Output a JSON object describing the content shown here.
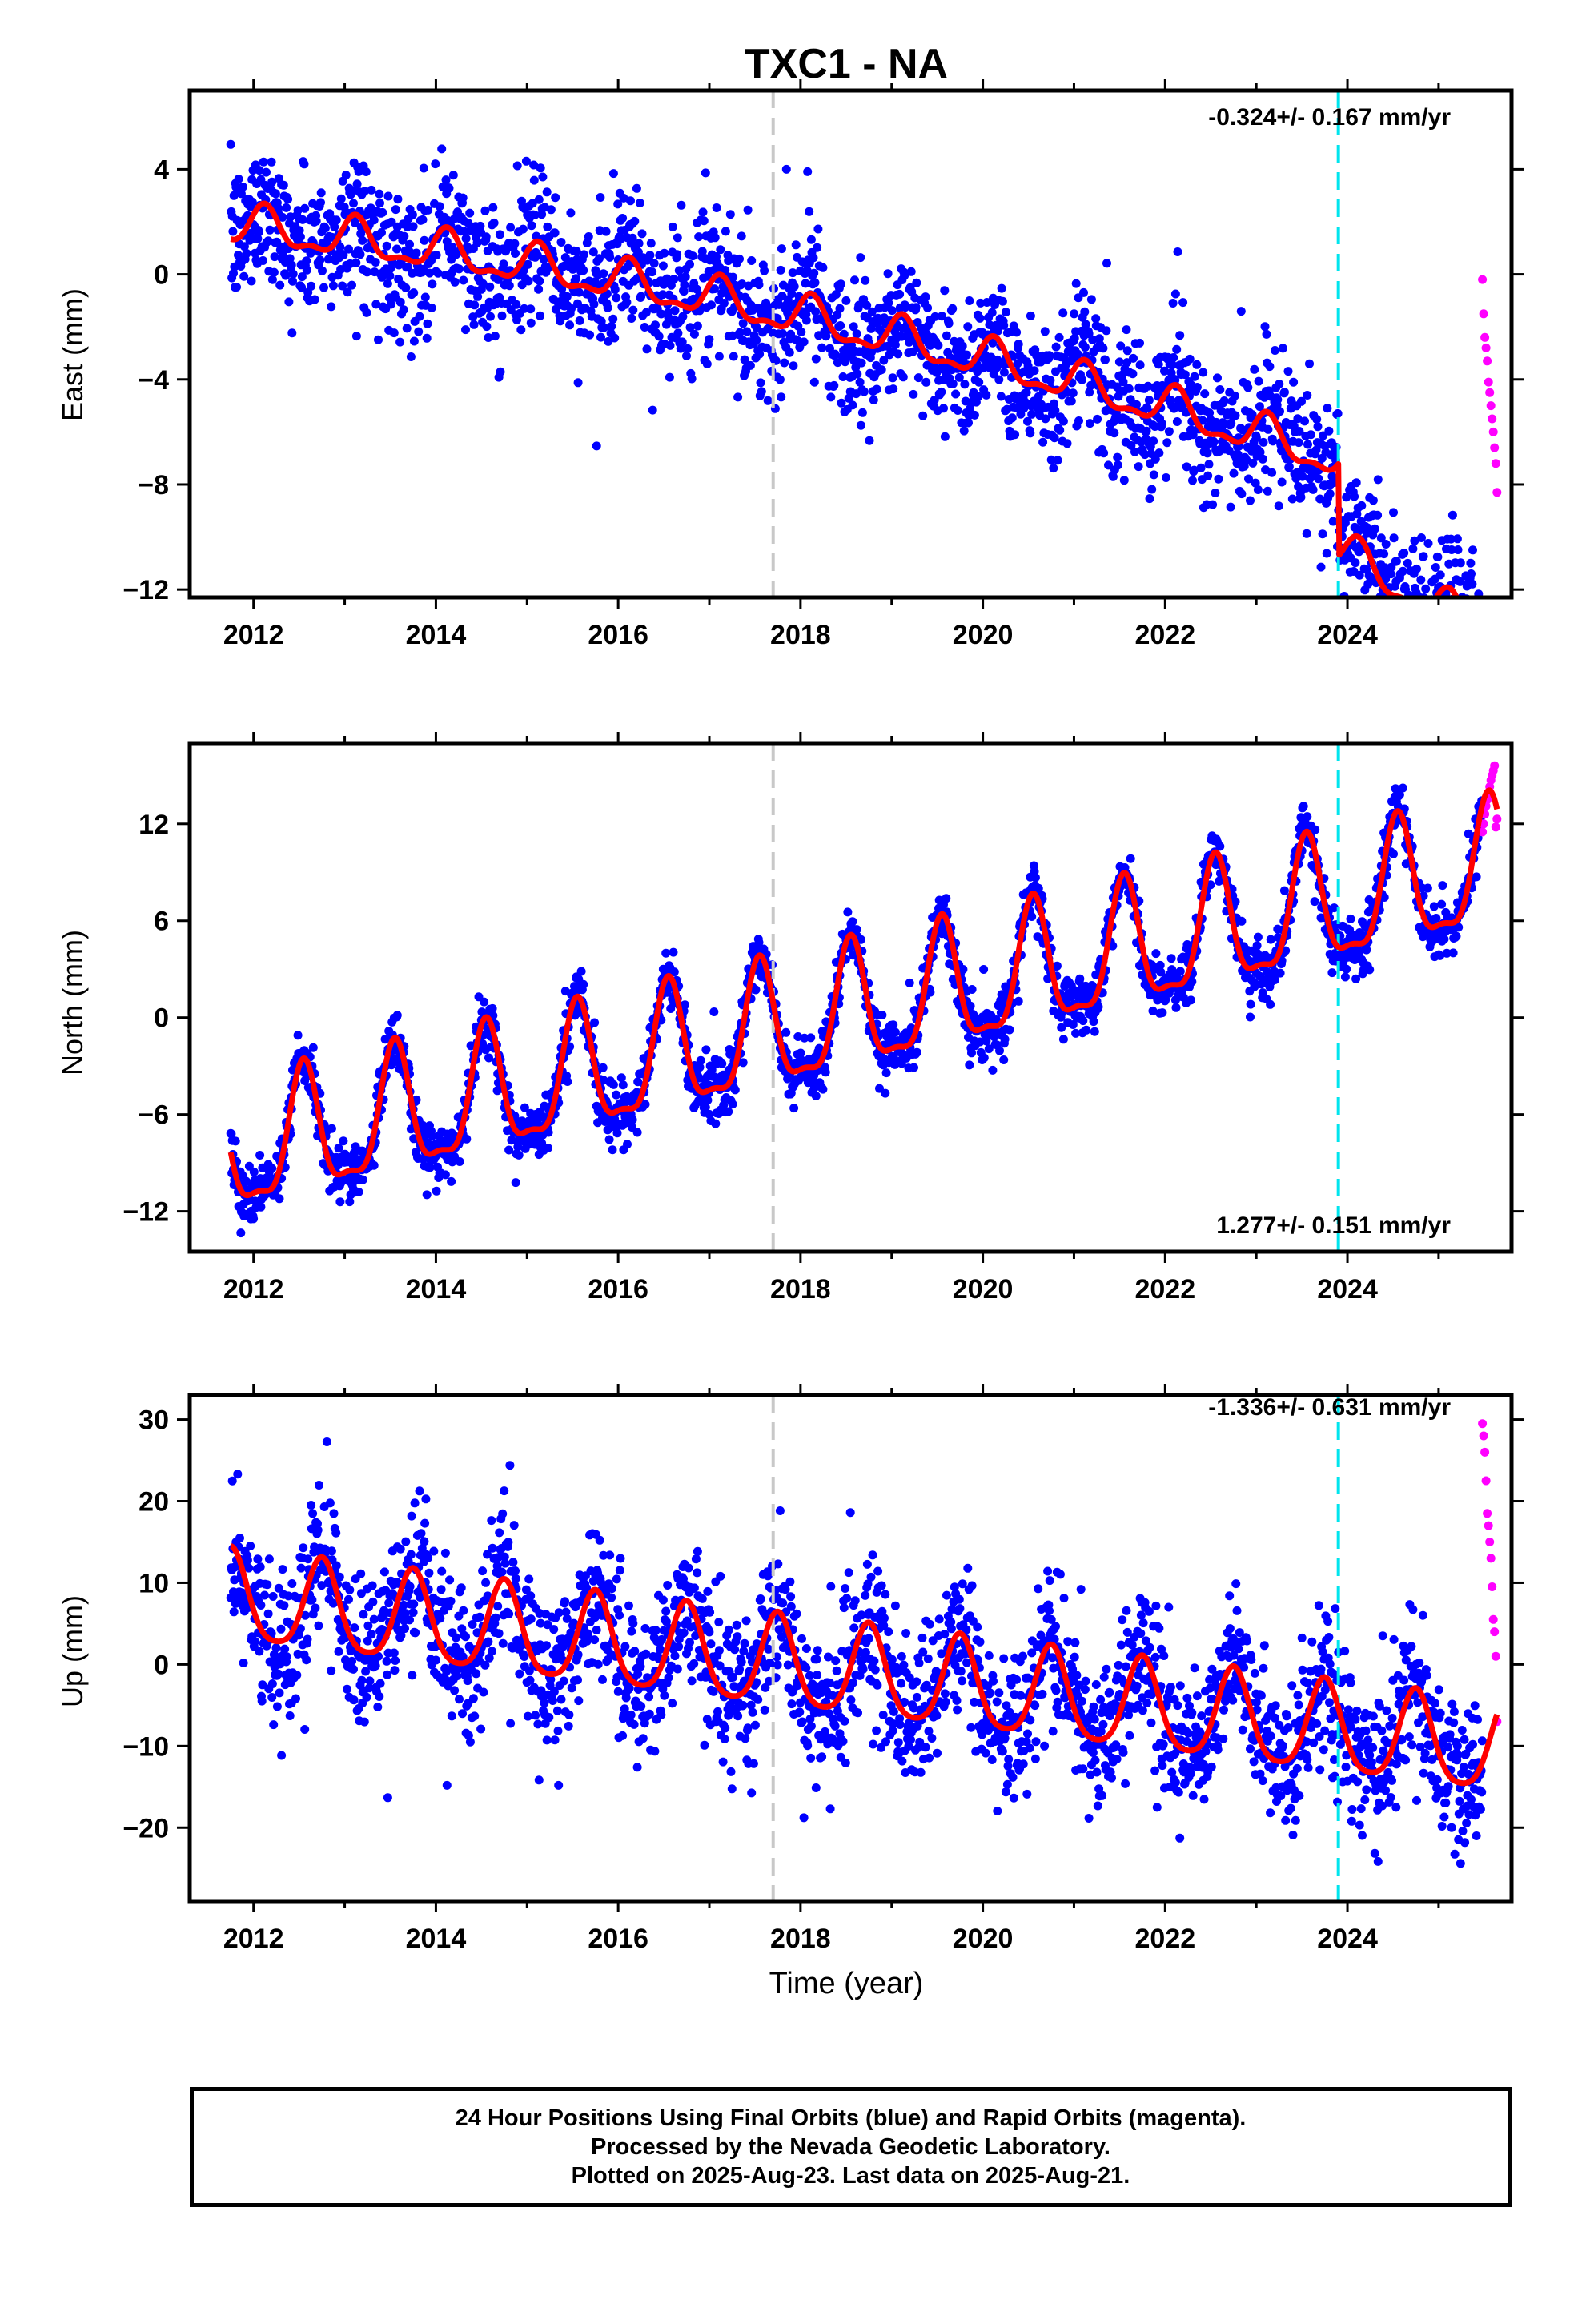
{
  "title": "TXC1 - NA",
  "xlabel": "Time (year)",
  "caption": {
    "line1": "24 Hour Positions Using Final Orbits (blue) and Rapid Orbits (magenta).",
    "line2": "Processed by the Nevada Geodetic Laboratory.",
    "line3": "Plotted on 2025-Aug-23. Last data on 2025-Aug-21."
  },
  "colors": {
    "final": "#0000ff",
    "rapid": "#ff00ff",
    "model": "#ff0000",
    "equipment_change": "#00e5ee",
    "reference_line": "#c8c8c8"
  },
  "chart_data": [
    {
      "type": "scatter",
      "component": "East",
      "ylabel": "East (mm)",
      "rate_label": "-0.324+/- 0.167 mm/yr",
      "rate": -0.324,
      "rate_sigma": 0.167,
      "xlim": [
        2011.3,
        2025.8
      ],
      "ylim": [
        -12.3,
        7
      ],
      "xticks": [
        2012,
        2014,
        2016,
        2018,
        2020,
        2022,
        2024
      ],
      "yticks": [
        -12,
        -8,
        -4,
        0,
        4
      ],
      "reference_line_x": 2017.7,
      "equipment_change_x": 2023.9,
      "model": {
        "intercept_2011": 2.1,
        "rate": -0.324,
        "annual_amp": 0.7,
        "annual_phase_year": 0.12,
        "semiannual_amp": 0.3,
        "offset_at_change": -3.5,
        "post_change_extra_rate": -0.8,
        "accel": -0.03
      },
      "scatter_sigma": 1.3,
      "rapid_values": [
        -0.2,
        -1.5,
        -2.4,
        -2.8,
        -3.3,
        -4.1,
        -4.5,
        -5.0,
        -5.5,
        -6.0,
        -6.6,
        -7.2,
        -8.3
      ],
      "rapid_x_range": [
        2025.48,
        2025.64
      ]
    },
    {
      "type": "scatter",
      "component": "North",
      "ylabel": "North (mm)",
      "rate_label": "1.277+/- 0.151 mm/yr",
      "rate": 1.277,
      "rate_sigma": 0.151,
      "xlim": [
        2011.3,
        2025.8
      ],
      "ylim": [
        -14.5,
        17
      ],
      "xticks": [
        2012,
        2014,
        2016,
        2018,
        2020,
        2022,
        2024
      ],
      "yticks": [
        -12,
        -6,
        0,
        6,
        12
      ],
      "reference_line_x": 2017.7,
      "equipment_change_x": 2023.9,
      "model": {
        "intercept_2011": -9.5,
        "rate": 1.277,
        "annual_amp": 3.8,
        "annual_phase_year": 0.55,
        "semiannual_amp": 1.2,
        "offset_at_change": 0.0,
        "post_change_extra_rate": 0.0,
        "accel": 0.0
      },
      "scatter_sigma": 0.9,
      "rapid_values": [
        11.5,
        12.0,
        12.6,
        13.1,
        13.5,
        13.9,
        14.3,
        14.7,
        15.0,
        15.3,
        15.6,
        11.8,
        12.3
      ],
      "rapid_x_range": [
        2025.48,
        2025.64
      ]
    },
    {
      "type": "scatter",
      "component": "Up",
      "ylabel": "Up (mm)",
      "rate_label": "-1.336+/- 0.631 mm/yr",
      "rate": -1.336,
      "rate_sigma": 0.631,
      "xlim": [
        2011.3,
        2025.8
      ],
      "ylim": [
        -29,
        33
      ],
      "xticks": [
        2012,
        2014,
        2016,
        2018,
        2020,
        2022,
        2024
      ],
      "yticks": [
        -20,
        -10,
        0,
        10,
        20,
        30
      ],
      "reference_line_x": 2017.7,
      "equipment_change_x": 2023.9,
      "model": {
        "intercept_2011": 9.0,
        "rate": -1.336,
        "annual_amp": 5.5,
        "annual_phase_year": 0.75,
        "semiannual_amp": 1.0,
        "offset_at_change": 0.0,
        "post_change_extra_rate": 0.0,
        "accel": 0.0
      },
      "scatter_sigma": 4.5,
      "rapid_values": [
        29.5,
        28.0,
        26.0,
        22.5,
        18.5,
        17.0,
        15.0,
        13.0,
        9.5,
        5.5,
        4.0,
        1.0,
        -7.0
      ],
      "rapid_x_range": [
        2025.48,
        2025.64
      ]
    }
  ]
}
